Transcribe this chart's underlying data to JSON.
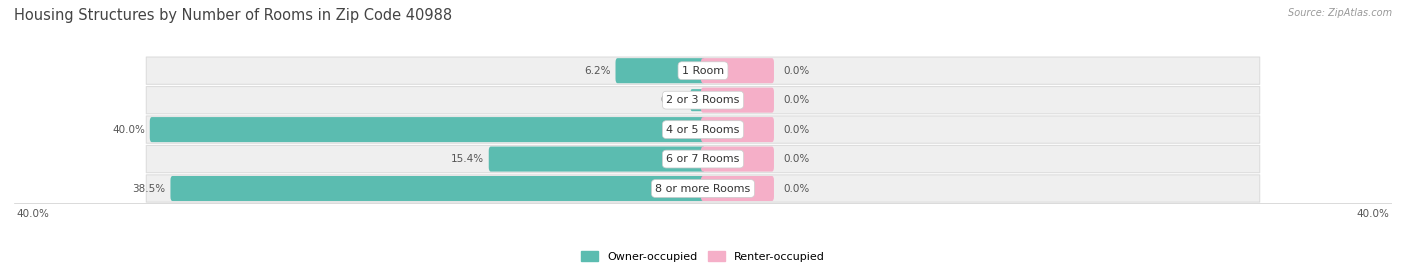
{
  "title": "Housing Structures by Number of Rooms in Zip Code 40988",
  "source": "Source: ZipAtlas.com",
  "categories": [
    "1 Room",
    "2 or 3 Rooms",
    "4 or 5 Rooms",
    "6 or 7 Rooms",
    "8 or more Rooms"
  ],
  "owner_pct": [
    6.2,
    0.0,
    40.0,
    15.4,
    38.5
  ],
  "renter_pct": [
    0.0,
    0.0,
    0.0,
    0.0,
    0.0
  ],
  "renter_display": [
    5.0,
    5.0,
    5.0,
    5.0,
    5.0
  ],
  "owner_color": "#5bbcb0",
  "renter_color": "#f5afc8",
  "row_bg_color": "#efefef",
  "max_val": 40.0,
  "label_color": "#555555",
  "title_color": "#444444",
  "source_color": "#999999",
  "background_color": "#ffffff",
  "legend_owner": "Owner-occupied",
  "legend_renter": "Renter-occupied",
  "left_axis_label": "40.0%",
  "right_axis_label": "40.0%"
}
